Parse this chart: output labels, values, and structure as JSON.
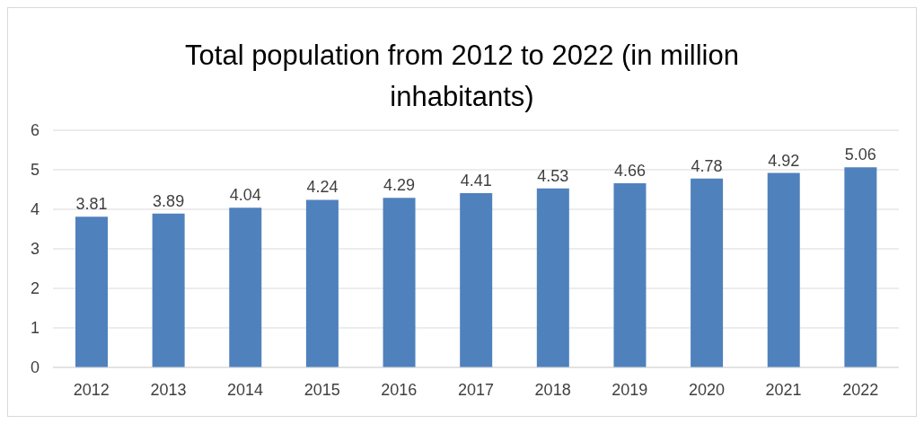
{
  "chart_data": {
    "type": "bar",
    "title": "Total population from 2012 to 2022 (in million inhabitants)",
    "categories": [
      "2012",
      "2013",
      "2014",
      "2015",
      "2016",
      "2017",
      "2018",
      "2019",
      "2020",
      "2021",
      "2022"
    ],
    "values": [
      3.81,
      3.89,
      4.04,
      4.24,
      4.29,
      4.41,
      4.53,
      4.66,
      4.78,
      4.92,
      5.06
    ],
    "color": "#4f81bd",
    "ylim": [
      0,
      6
    ],
    "yticks": [
      0,
      1,
      2,
      3,
      4,
      5,
      6
    ],
    "grid": "y",
    "data_labels": true
  }
}
